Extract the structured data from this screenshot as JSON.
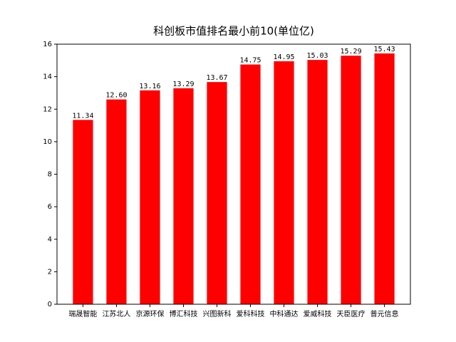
{
  "chart_data": {
    "type": "bar",
    "title": "科创板市值排名最小前10(单位亿)",
    "categories": [
      "瑞晟智能",
      "江苏北人",
      "京源环保",
      "博汇科技",
      "兴图新科",
      "爱科科技",
      "中科通达",
      "爱威科技",
      "天臣医疗",
      "普元信息"
    ],
    "values": [
      11.34,
      12.6,
      13.16,
      13.29,
      13.67,
      14.75,
      14.95,
      15.03,
      15.29,
      15.43
    ],
    "value_labels": [
      "11.34",
      "12.60",
      "13.16",
      "13.29",
      "13.67",
      "14.75",
      "14.95",
      "15.03",
      "15.29",
      "15.43"
    ],
    "color": "#ff0000",
    "ylim": [
      0,
      16
    ],
    "yticks": [
      0,
      2,
      4,
      6,
      8,
      10,
      12,
      14,
      16
    ]
  }
}
